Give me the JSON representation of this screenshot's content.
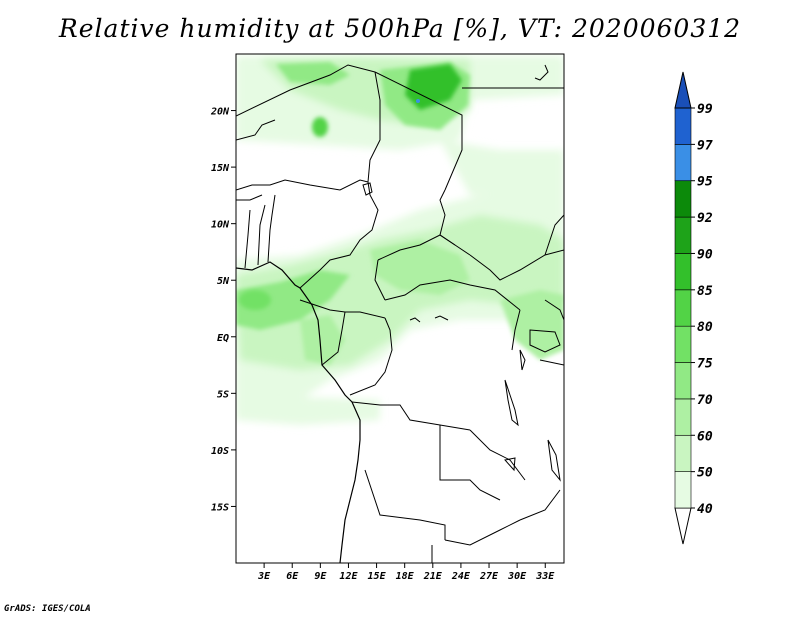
{
  "title": "Relative humidity at 500hPa [%], VT: 2020060312",
  "credit": "GrADS: IGES/COLA",
  "map": {
    "lat_range": [
      -20,
      25
    ],
    "lon_range": [
      0,
      35
    ],
    "lat_ticks": [
      {
        "value": 20,
        "label": "20N"
      },
      {
        "value": 15,
        "label": "15N"
      },
      {
        "value": 10,
        "label": "10N"
      },
      {
        "value": 5,
        "label": "5N"
      },
      {
        "value": 0,
        "label": "EQ"
      },
      {
        "value": -5,
        "label": "5S"
      },
      {
        "value": -10,
        "label": "10S"
      },
      {
        "value": -15,
        "label": "15S"
      }
    ],
    "lon_ticks": [
      {
        "value": 3,
        "label": "3E"
      },
      {
        "value": 6,
        "label": "6E"
      },
      {
        "value": 9,
        "label": "9E"
      },
      {
        "value": 12,
        "label": "12E"
      },
      {
        "value": 15,
        "label": "15E"
      },
      {
        "value": 18,
        "label": "18E"
      },
      {
        "value": 21,
        "label": "21E"
      },
      {
        "value": 24,
        "label": "24E"
      },
      {
        "value": 27,
        "label": "27E"
      },
      {
        "value": 30,
        "label": "30E"
      },
      {
        "value": 33,
        "label": "33E"
      }
    ]
  },
  "colorbar": {
    "levels": [
      "40",
      "50",
      "60",
      "70",
      "75",
      "80",
      "85",
      "90",
      "92",
      "95",
      "97",
      "99"
    ],
    "colors": [
      "#ffffff",
      "#e6fbe3",
      "#c9f5c1",
      "#aef0a3",
      "#91e985",
      "#72e165",
      "#52d346",
      "#33c02b",
      "#1ea319",
      "#0c8a0a",
      "#3a8fe6",
      "#1f62d0",
      "#1a4fb8"
    ]
  }
}
